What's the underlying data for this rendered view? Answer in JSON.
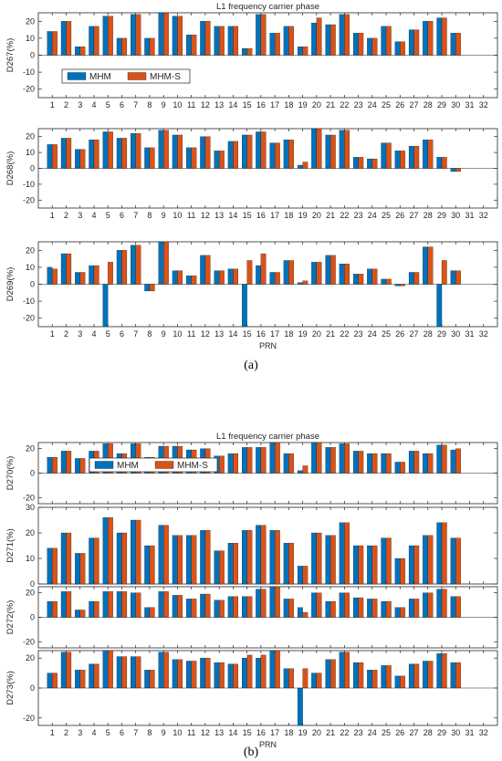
{
  "figure": {
    "label_a": "(a)",
    "label_b": "(b)",
    "colors": {
      "mhm": "#0072BD",
      "mhms": "#D95319"
    }
  },
  "chart_data": [
    {
      "type": "bar",
      "title": "L1 frequency carrier phase",
      "ylabel": "D267(%)",
      "xlabel": "",
      "ylim": [
        -25,
        25
      ],
      "yticks": [
        -20,
        -10,
        0,
        10,
        20
      ],
      "categories": [
        "1",
        "2",
        "3",
        "4",
        "5",
        "6",
        "7",
        "8",
        "9",
        "10",
        "11",
        "12",
        "13",
        "14",
        "15",
        "16",
        "17",
        "18",
        "19",
        "20",
        "21",
        "22",
        "23",
        "24",
        "25",
        "26",
        "27",
        "28",
        "29",
        "30",
        "31",
        "32"
      ],
      "legend": {
        "placement": "upper-left",
        "entries": [
          "MHM",
          "MHM-S"
        ]
      },
      "series": [
        {
          "name": "MHM",
          "values": [
            14,
            20,
            5,
            17,
            23,
            10,
            24,
            10,
            25,
            23,
            12,
            20,
            17,
            17,
            4,
            24,
            13,
            17,
            5,
            19,
            18,
            24,
            13,
            10,
            17,
            8,
            15,
            20,
            22,
            13,
            0,
            0
          ]
        },
        {
          "name": "MHM-S",
          "values": [
            14,
            20,
            5,
            17,
            23,
            10,
            24,
            10,
            25,
            23,
            12,
            20,
            17,
            17,
            4,
            24,
            13,
            17,
            5,
            22,
            18,
            24,
            13,
            10,
            17,
            8,
            15,
            20,
            22,
            13,
            0,
            0
          ]
        }
      ]
    },
    {
      "type": "bar",
      "title": "",
      "ylabel": "D268(%)",
      "xlabel": "",
      "ylim": [
        -25,
        25
      ],
      "yticks": [
        -20,
        -10,
        0,
        10,
        20
      ],
      "categories": [
        "1",
        "2",
        "3",
        "4",
        "5",
        "6",
        "7",
        "8",
        "9",
        "10",
        "11",
        "12",
        "13",
        "14",
        "15",
        "16",
        "17",
        "18",
        "19",
        "20",
        "21",
        "22",
        "23",
        "24",
        "25",
        "26",
        "27",
        "28",
        "29",
        "30",
        "31",
        "32"
      ],
      "series": [
        {
          "name": "MHM",
          "values": [
            15,
            19,
            12,
            18,
            23,
            19,
            22,
            13,
            24,
            21,
            13,
            20,
            11,
            17,
            21,
            23,
            16,
            18,
            2,
            25,
            21,
            24,
            7,
            6,
            16,
            11,
            14,
            18,
            7,
            -2,
            0,
            0
          ]
        },
        {
          "name": "MHM-S",
          "values": [
            15,
            19,
            12,
            18,
            23,
            19,
            22,
            13,
            24,
            21,
            13,
            20,
            11,
            17,
            21,
            23,
            16,
            18,
            4,
            25,
            21,
            24,
            7,
            6,
            16,
            11,
            14,
            18,
            7,
            -2,
            0,
            0
          ]
        }
      ]
    },
    {
      "type": "bar",
      "title": "",
      "ylabel": "D269(%)",
      "xlabel": "PRN",
      "ylim": [
        -25,
        25
      ],
      "yticks": [
        -20,
        -10,
        0,
        10,
        20
      ],
      "categories": [
        "1",
        "2",
        "3",
        "4",
        "5",
        "6",
        "7",
        "8",
        "9",
        "10",
        "11",
        "12",
        "13",
        "14",
        "15",
        "16",
        "17",
        "18",
        "19",
        "20",
        "21",
        "22",
        "23",
        "24",
        "25",
        "26",
        "27",
        "28",
        "29",
        "30",
        "31",
        "32"
      ],
      "series": [
        {
          "name": "MHM",
          "values": [
            10,
            18,
            7,
            11,
            -25,
            20,
            23,
            -4,
            25,
            8,
            5,
            17,
            8,
            9,
            -25,
            11,
            7,
            14,
            1,
            13,
            17,
            12,
            6,
            9,
            3,
            -1,
            7,
            22,
            -25,
            8,
            0,
            0
          ]
        },
        {
          "name": "MHM-S",
          "values": [
            9,
            18,
            7,
            11,
            13,
            20,
            23,
            -4,
            25,
            8,
            5,
            17,
            8,
            9,
            14,
            18,
            7,
            14,
            2,
            13,
            17,
            12,
            6,
            9,
            3,
            -1,
            7,
            22,
            14,
            8,
            0,
            0
          ]
        }
      ]
    },
    {
      "type": "bar",
      "title": "L1 frequency carrier phase",
      "ylabel": "D270(%)",
      "xlabel": "",
      "ylim": [
        -25,
        25
      ],
      "yticks": [
        -20,
        0,
        20
      ],
      "categories": [
        "1",
        "2",
        "3",
        "4",
        "5",
        "6",
        "7",
        "8",
        "9",
        "10",
        "11",
        "12",
        "13",
        "14",
        "15",
        "16",
        "17",
        "18",
        "19",
        "20",
        "21",
        "22",
        "23",
        "24",
        "25",
        "26",
        "27",
        "28",
        "29",
        "30",
        "31",
        "32"
      ],
      "legend": {
        "placement": "upper-left",
        "entries": [
          "MHM",
          "MHM-S"
        ]
      },
      "series": [
        {
          "name": "MHM",
          "values": [
            13,
            18,
            12,
            18,
            24,
            16,
            24,
            13,
            22,
            22,
            19,
            20,
            14,
            16,
            21,
            21,
            25,
            16,
            2,
            25,
            21,
            24,
            18,
            16,
            16,
            9,
            18,
            16,
            23,
            19,
            0,
            0
          ]
        },
        {
          "name": "MHM-S",
          "values": [
            13,
            18,
            12,
            18,
            24,
            16,
            24,
            13,
            22,
            22,
            19,
            20,
            14,
            16,
            21,
            21,
            25,
            16,
            6,
            25,
            21,
            24,
            18,
            16,
            16,
            9,
            18,
            16,
            23,
            20,
            0,
            0
          ]
        }
      ]
    },
    {
      "type": "bar",
      "title": "",
      "ylabel": "D271(%)",
      "xlabel": "",
      "ylim": [
        0,
        30
      ],
      "yticks": [
        0,
        10,
        20,
        30
      ],
      "categories": [
        "1",
        "2",
        "3",
        "4",
        "5",
        "6",
        "7",
        "8",
        "9",
        "10",
        "11",
        "12",
        "13",
        "14",
        "15",
        "16",
        "17",
        "18",
        "19",
        "20",
        "21",
        "22",
        "23",
        "24",
        "25",
        "26",
        "27",
        "28",
        "29",
        "30",
        "31",
        "32"
      ],
      "series": [
        {
          "name": "MHM",
          "values": [
            14,
            20,
            12,
            18,
            26,
            20,
            25,
            15,
            23,
            19,
            19,
            21,
            13,
            16,
            21,
            23,
            21,
            16,
            7,
            20,
            19,
            24,
            15,
            15,
            18,
            10,
            15,
            19,
            24,
            18,
            0,
            0
          ]
        },
        {
          "name": "MHM-S",
          "values": [
            14,
            20,
            12,
            18,
            26,
            20,
            25,
            15,
            23,
            19,
            19,
            21,
            13,
            16,
            21,
            23,
            21,
            16,
            7,
            20,
            19,
            24,
            15,
            15,
            18,
            10,
            15,
            19,
            24,
            18,
            0,
            0
          ]
        }
      ]
    },
    {
      "type": "bar",
      "title": "",
      "ylabel": "D272(%)",
      "xlabel": "",
      "ylim": [
        -25,
        25
      ],
      "yticks": [
        -20,
        0,
        20
      ],
      "categories": [
        "1",
        "2",
        "3",
        "4",
        "5",
        "6",
        "7",
        "8",
        "9",
        "10",
        "11",
        "12",
        "13",
        "14",
        "15",
        "16",
        "17",
        "18",
        "19",
        "20",
        "21",
        "22",
        "23",
        "24",
        "25",
        "26",
        "27",
        "28",
        "29",
        "30",
        "31",
        "32"
      ],
      "series": [
        {
          "name": "MHM",
          "values": [
            13,
            21,
            6,
            13,
            21,
            21,
            20,
            8,
            21,
            18,
            15,
            19,
            14,
            17,
            17,
            23,
            25,
            15,
            8,
            20,
            13,
            20,
            16,
            15,
            13,
            8,
            15,
            20,
            23,
            17,
            0,
            0
          ]
        },
        {
          "name": "MHM-S",
          "values": [
            13,
            21,
            6,
            13,
            21,
            21,
            20,
            8,
            21,
            18,
            15,
            19,
            14,
            17,
            17,
            23,
            25,
            15,
            4,
            20,
            13,
            20,
            16,
            15,
            13,
            8,
            15,
            20,
            23,
            17,
            0,
            0
          ]
        }
      ]
    },
    {
      "type": "bar",
      "title": "",
      "ylabel": "D273(%)",
      "xlabel": "PRN",
      "ylim": [
        -25,
        25
      ],
      "yticks": [
        -20,
        0,
        20
      ],
      "categories": [
        "1",
        "2",
        "3",
        "4",
        "5",
        "6",
        "7",
        "8",
        "9",
        "10",
        "11",
        "12",
        "13",
        "14",
        "15",
        "16",
        "17",
        "18",
        "19",
        "20",
        "21",
        "22",
        "23",
        "24",
        "25",
        "26",
        "27",
        "28",
        "29",
        "30",
        "31",
        "32"
      ],
      "series": [
        {
          "name": "MHM",
          "values": [
            10,
            24,
            12,
            16,
            25,
            21,
            21,
            12,
            24,
            19,
            18,
            20,
            17,
            16,
            20,
            20,
            25,
            13,
            -25,
            10,
            19,
            24,
            17,
            12,
            15,
            8,
            16,
            18,
            23,
            17,
            0,
            0
          ]
        },
        {
          "name": "MHM-S",
          "values": [
            10,
            24,
            12,
            16,
            25,
            21,
            21,
            12,
            24,
            19,
            18,
            20,
            17,
            16,
            22,
            22,
            25,
            13,
            13,
            10,
            19,
            24,
            17,
            12,
            15,
            8,
            16,
            18,
            23,
            17,
            0,
            0
          ]
        }
      ]
    }
  ]
}
